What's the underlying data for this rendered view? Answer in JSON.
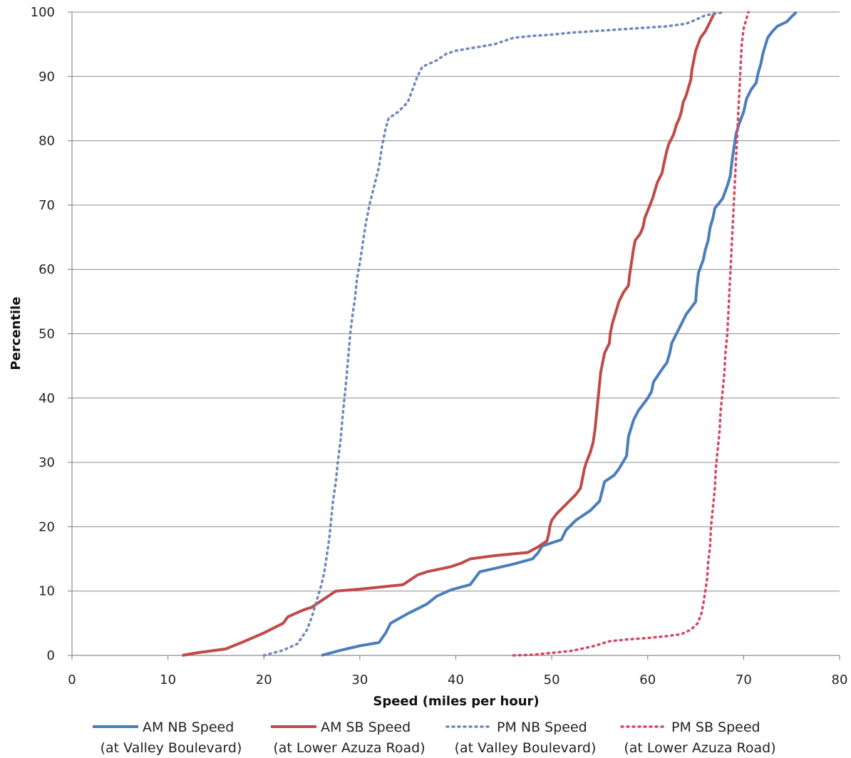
{
  "chart_data": {
    "type": "line",
    "title": "",
    "xlabel": "Speed (miles per hour)",
    "ylabel": "Percentile",
    "xlim": [
      0,
      80
    ],
    "ylim": [
      0,
      100
    ],
    "x_ticks": [
      0,
      10,
      20,
      30,
      40,
      50,
      60,
      70,
      80
    ],
    "y_ticks": [
      0,
      10,
      20,
      30,
      40,
      50,
      60,
      70,
      80,
      90,
      100
    ],
    "grid": "horizontal",
    "legend_position": "bottom",
    "series": [
      {
        "name": "AM NB Speed",
        "location": "(at Valley Boulevard)",
        "color": "#4a7ebb",
        "style": "solid",
        "points": [
          [
            26,
            0
          ],
          [
            28,
            0.8
          ],
          [
            30,
            1.5
          ],
          [
            32,
            2
          ],
          [
            32.7,
            3.5
          ],
          [
            33.2,
            5
          ],
          [
            35,
            6.5
          ],
          [
            37,
            8
          ],
          [
            38,
            9.2
          ],
          [
            39.5,
            10.2
          ],
          [
            41.5,
            11
          ],
          [
            42.5,
            13
          ],
          [
            44,
            13.5
          ],
          [
            46,
            14.2
          ],
          [
            48,
            15
          ],
          [
            48.6,
            16
          ],
          [
            49,
            17
          ],
          [
            51,
            18
          ],
          [
            51.5,
            19.5
          ],
          [
            52.5,
            21
          ],
          [
            54,
            22.5
          ],
          [
            55,
            24
          ],
          [
            55.5,
            27
          ],
          [
            56.5,
            28
          ],
          [
            57,
            29
          ],
          [
            57.8,
            31
          ],
          [
            58,
            34
          ],
          [
            58.5,
            36.5
          ],
          [
            59,
            38
          ],
          [
            60,
            40
          ],
          [
            60.4,
            41
          ],
          [
            60.6,
            42.5
          ],
          [
            61.5,
            44.5
          ],
          [
            62,
            45.5
          ],
          [
            62.3,
            47
          ],
          [
            62.5,
            48.5
          ],
          [
            63,
            50
          ],
          [
            63.5,
            51.5
          ],
          [
            64,
            53
          ],
          [
            65,
            55
          ],
          [
            65.1,
            57
          ],
          [
            65.3,
            59.5
          ],
          [
            65.8,
            61.5
          ],
          [
            66,
            63
          ],
          [
            66.3,
            64.5
          ],
          [
            66.5,
            66.5
          ],
          [
            66.8,
            68
          ],
          [
            67,
            69.5
          ],
          [
            67.8,
            71
          ],
          [
            68.3,
            73
          ],
          [
            68.6,
            74.5
          ],
          [
            68.8,
            77
          ],
          [
            69,
            79
          ],
          [
            69.2,
            81
          ],
          [
            69.5,
            82.5
          ],
          [
            70,
            84.5
          ],
          [
            70.3,
            86.5
          ],
          [
            70.8,
            88
          ],
          [
            71.3,
            89
          ],
          [
            71.5,
            90.5
          ],
          [
            71.8,
            92
          ],
          [
            72,
            93.5
          ],
          [
            72.5,
            96
          ],
          [
            73,
            97
          ],
          [
            73.5,
            97.8
          ],
          [
            74.5,
            98.5
          ],
          [
            75,
            99.3
          ],
          [
            75.5,
            100
          ]
        ]
      },
      {
        "name": "AM SB Speed",
        "location": "(at Lower Azuza Road)",
        "color": "#be4b48",
        "style": "solid",
        "points": [
          [
            11.5,
            0
          ],
          [
            13,
            0.4
          ],
          [
            16,
            1
          ],
          [
            18,
            2.2
          ],
          [
            20,
            3.5
          ],
          [
            22,
            5
          ],
          [
            22.5,
            6
          ],
          [
            24,
            7
          ],
          [
            25,
            7.5
          ],
          [
            26,
            8.5
          ],
          [
            27,
            9.5
          ],
          [
            27.5,
            10
          ],
          [
            30,
            10.3
          ],
          [
            32,
            10.6
          ],
          [
            34.5,
            11
          ],
          [
            36,
            12.5
          ],
          [
            37,
            13
          ],
          [
            39.5,
            13.8
          ],
          [
            40.5,
            14.3
          ],
          [
            41.5,
            15
          ],
          [
            44,
            15.5
          ],
          [
            47.5,
            16
          ],
          [
            48.5,
            16.8
          ],
          [
            49.5,
            17.8
          ],
          [
            49.7,
            19
          ],
          [
            49.8,
            20
          ],
          [
            50,
            21
          ],
          [
            50.5,
            22
          ],
          [
            51.5,
            23.5
          ],
          [
            52.5,
            25
          ],
          [
            53,
            26
          ],
          [
            53.2,
            27.5
          ],
          [
            53.4,
            29
          ],
          [
            53.6,
            30
          ],
          [
            54,
            31.5
          ],
          [
            54.3,
            33
          ],
          [
            54.5,
            35
          ],
          [
            54.7,
            38
          ],
          [
            54.9,
            41
          ],
          [
            55.1,
            44
          ],
          [
            55.3,
            45.5
          ],
          [
            55.5,
            47
          ],
          [
            56,
            48.5
          ],
          [
            56.1,
            50
          ],
          [
            56.3,
            51.5
          ],
          [
            56.6,
            53
          ],
          [
            57,
            55
          ],
          [
            57.5,
            56.5
          ],
          [
            58,
            57.5
          ],
          [
            58.1,
            59
          ],
          [
            58.3,
            61
          ],
          [
            58.5,
            63
          ],
          [
            58.7,
            64.5
          ],
          [
            59.2,
            65.5
          ],
          [
            59.5,
            66.5
          ],
          [
            59.7,
            68
          ],
          [
            60.1,
            69.5
          ],
          [
            60.5,
            71
          ],
          [
            60.8,
            72.5
          ],
          [
            61,
            73.5
          ],
          [
            61.5,
            75
          ],
          [
            61.7,
            76.5
          ],
          [
            62,
            78.5
          ],
          [
            62.2,
            79.5
          ],
          [
            62.7,
            81
          ],
          [
            63,
            82.5
          ],
          [
            63.3,
            83.5
          ],
          [
            63.5,
            84.5
          ],
          [
            63.7,
            86
          ],
          [
            64,
            87
          ],
          [
            64.3,
            88.5
          ],
          [
            64.5,
            89.5
          ],
          [
            64.6,
            91
          ],
          [
            64.8,
            92.5
          ],
          [
            65,
            94
          ],
          [
            65.5,
            96
          ],
          [
            66,
            97
          ],
          [
            66.5,
            98.5
          ],
          [
            67,
            100
          ]
        ]
      },
      {
        "name": "PM NB Speed",
        "location": "(at Valley Boulevard)",
        "color": "#6f89bd",
        "style": "dotted",
        "points": [
          [
            20,
            0
          ],
          [
            22,
            0.8
          ],
          [
            23.5,
            1.8
          ],
          [
            24.5,
            4
          ],
          [
            25,
            6
          ],
          [
            25.5,
            8.5
          ],
          [
            26,
            11
          ],
          [
            26.3,
            13
          ],
          [
            26.5,
            15
          ],
          [
            26.8,
            18
          ],
          [
            27,
            21
          ],
          [
            27.2,
            24
          ],
          [
            27.5,
            27
          ],
          [
            27.7,
            30
          ],
          [
            28,
            33.5
          ],
          [
            28.2,
            37
          ],
          [
            28.4,
            40
          ],
          [
            28.6,
            43
          ],
          [
            28.8,
            46.5
          ],
          [
            29,
            50
          ],
          [
            29.2,
            52.5
          ],
          [
            29.5,
            55.5
          ],
          [
            29.7,
            58.5
          ],
          [
            30,
            61
          ],
          [
            30.3,
            64
          ],
          [
            30.6,
            67
          ],
          [
            31,
            70
          ],
          [
            31.5,
            73
          ],
          [
            32,
            76
          ],
          [
            32.3,
            79
          ],
          [
            32.7,
            82
          ],
          [
            33,
            83.5
          ],
          [
            34,
            84.5
          ],
          [
            35,
            86
          ],
          [
            35.5,
            88
          ],
          [
            36,
            90
          ],
          [
            36.5,
            91.5
          ],
          [
            38,
            92.5
          ],
          [
            39,
            93.5
          ],
          [
            40,
            94
          ],
          [
            42,
            94.5
          ],
          [
            44,
            95
          ],
          [
            46,
            96
          ],
          [
            48,
            96.3
          ],
          [
            50,
            96.5
          ],
          [
            52,
            96.8
          ],
          [
            54,
            97
          ],
          [
            56,
            97.2
          ],
          [
            58,
            97.4
          ],
          [
            60,
            97.6
          ],
          [
            62,
            97.8
          ],
          [
            64,
            98.2
          ],
          [
            65,
            98.8
          ],
          [
            66,
            99.5
          ],
          [
            68,
            100
          ]
        ]
      },
      {
        "name": "PM SB Speed",
        "location": "(at Lower Azuza Road)",
        "color": "#d44a62",
        "style": "dotted",
        "points": [
          [
            46,
            0
          ],
          [
            48,
            0.1
          ],
          [
            50,
            0.4
          ],
          [
            52,
            0.7
          ],
          [
            53,
            1
          ],
          [
            54.5,
            1.5
          ],
          [
            56,
            2.2
          ],
          [
            58,
            2.5
          ],
          [
            60,
            2.7
          ],
          [
            62,
            3
          ],
          [
            63.5,
            3.3
          ],
          [
            64.5,
            4
          ],
          [
            65.2,
            5
          ],
          [
            65.6,
            6.5
          ],
          [
            65.8,
            8
          ],
          [
            66,
            10
          ],
          [
            66.2,
            12
          ],
          [
            66.3,
            14.5
          ],
          [
            66.5,
            17
          ],
          [
            66.6,
            20
          ],
          [
            66.8,
            23
          ],
          [
            67,
            26
          ],
          [
            67.1,
            29
          ],
          [
            67.3,
            32
          ],
          [
            67.5,
            35
          ],
          [
            67.6,
            38
          ],
          [
            67.8,
            41
          ],
          [
            68,
            44
          ],
          [
            68.1,
            47
          ],
          [
            68.3,
            50
          ],
          [
            68.4,
            53
          ],
          [
            68.5,
            56
          ],
          [
            68.6,
            59
          ],
          [
            68.7,
            62
          ],
          [
            68.8,
            65
          ],
          [
            68.9,
            68
          ],
          [
            69,
            71
          ],
          [
            69.1,
            74
          ],
          [
            69.2,
            77
          ],
          [
            69.3,
            80
          ],
          [
            69.4,
            83
          ],
          [
            69.5,
            86
          ],
          [
            69.6,
            89
          ],
          [
            69.7,
            92
          ],
          [
            69.8,
            95
          ],
          [
            70,
            97.5
          ],
          [
            70.5,
            100
          ]
        ]
      }
    ]
  }
}
